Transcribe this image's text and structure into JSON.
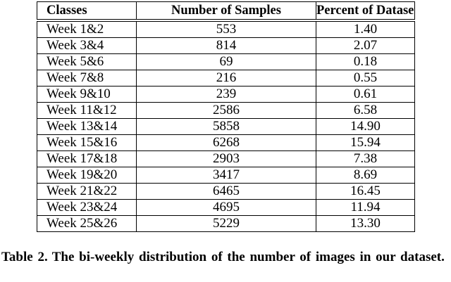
{
  "table": {
    "headers": [
      "Classes",
      "Number of Samples",
      "Percent of Dataset"
    ],
    "rows": [
      [
        "Week 1&2",
        "553",
        "1.40"
      ],
      [
        "Week 3&4",
        "814",
        "2.07"
      ],
      [
        "Week 5&6",
        "69",
        "0.18"
      ],
      [
        "Week 7&8",
        "216",
        "0.55"
      ],
      [
        "Week 9&10",
        "239",
        "0.61"
      ],
      [
        "Week 11&12",
        "2586",
        "6.58"
      ],
      [
        "Week 13&14",
        "5858",
        "14.90"
      ],
      [
        "Week 15&16",
        "6268",
        "15.94"
      ],
      [
        "Week 17&18",
        "2903",
        "7.38"
      ],
      [
        "Week 19&20",
        "3417",
        "8.69"
      ],
      [
        "Week 21&22",
        "6465",
        "16.45"
      ],
      [
        "Week 23&24",
        "4695",
        "11.94"
      ],
      [
        "Week 25&26",
        "5229",
        "13.30"
      ]
    ]
  },
  "caption": {
    "label": "Table 2.",
    "text": "The bi-weekly distribution of the number of images in our dataset."
  }
}
